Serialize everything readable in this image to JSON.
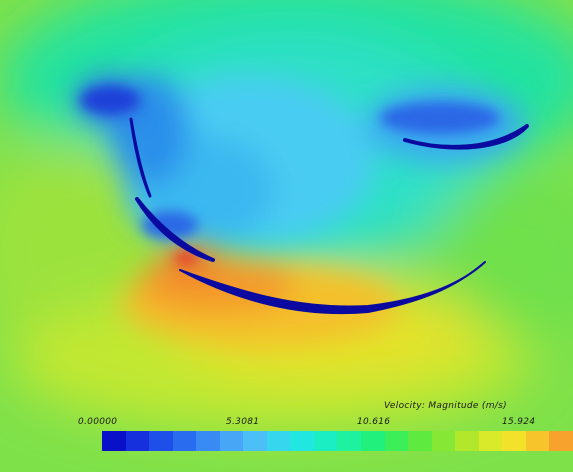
{
  "legend": {
    "title": "Velocity: Magnitude (m/s)",
    "ticks": [
      "0.00000",
      "5.3081",
      "10.616",
      "15.924"
    ],
    "colors": [
      "#0a10c8",
      "#1530dc",
      "#1e4fe8",
      "#2a6cf0",
      "#3a8af4",
      "#48a6f6",
      "#4cc0f6",
      "#36d6ee",
      "#22e6e0",
      "#1ceec4",
      "#1ef2a0",
      "#22f07c",
      "#3cee58",
      "#5eea3e",
      "#86e834",
      "#b2e82c",
      "#d8ea2a",
      "#f2e22a",
      "#f8c42c",
      "#f8a22e"
    ]
  },
  "field": {
    "background_color": "#7fe14a",
    "blade_color": "#0a0aa0",
    "slow_color": "#36c8f2",
    "fast_color": "#f07a2a"
  }
}
